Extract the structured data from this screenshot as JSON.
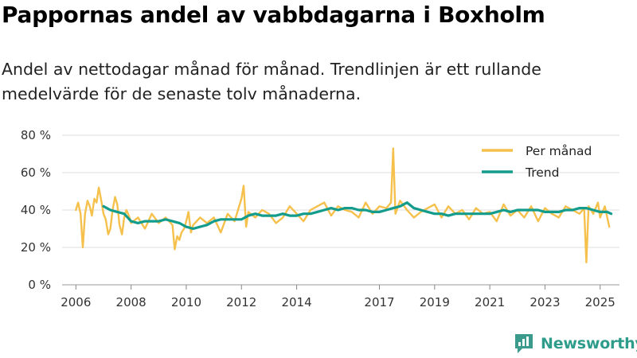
{
  "header": {
    "title": "Pappornas andel av vabbdagarna i Boxholm",
    "subtitle": "Andel av nettodagar månad för månad. Trendlinjen är ett rullande medelvärde för de senaste tolv månaderna."
  },
  "brand": {
    "name": "Newsworthy",
    "icon": "newsworthy-logo-icon",
    "color": "#3a9b8c"
  },
  "chart_data": {
    "type": "line",
    "title": "Pappornas andel av vabbdagarna i Boxholm",
    "xlabel": "",
    "ylabel": "",
    "ylim": [
      0,
      80
    ],
    "xlim": [
      2005.5,
      2025.7
    ],
    "y_ticks": [
      0,
      20,
      40,
      60,
      80
    ],
    "y_tick_labels": [
      "0 %",
      "20 %",
      "40 %",
      "60 %",
      "80 %"
    ],
    "x_ticks": [
      2006,
      2008,
      2010,
      2012,
      2014,
      2017,
      2019,
      2021,
      2023,
      2025
    ],
    "x_tick_labels": [
      "2006",
      "2008",
      "2010",
      "2012",
      "2014",
      "2017",
      "2019",
      "2021",
      "2023",
      "2025"
    ],
    "grid": true,
    "legend_position": "top-right",
    "series": [
      {
        "name": "Per månad",
        "color": "#f5c14c",
        "x": [
          2006.0,
          2006.08,
          2006.17,
          2006.25,
          2006.33,
          2006.42,
          2006.5,
          2006.58,
          2006.67,
          2006.75,
          2006.83,
          2006.92,
          2007.0,
          2007.08,
          2007.17,
          2007.25,
          2007.33,
          2007.42,
          2007.5,
          2007.58,
          2007.67,
          2007.75,
          2007.83,
          2007.92,
          2008.0,
          2008.25,
          2008.5,
          2008.75,
          2009.0,
          2009.25,
          2009.5,
          2009.58,
          2009.67,
          2009.75,
          2009.83,
          2009.92,
          2010.0,
          2010.08,
          2010.17,
          2010.25,
          2010.5,
          2010.75,
          2011.0,
          2011.25,
          2011.5,
          2011.75,
          2012.0,
          2012.08,
          2012.17,
          2012.25,
          2012.5,
          2012.75,
          2013.0,
          2013.25,
          2013.5,
          2013.75,
          2014.0,
          2014.25,
          2014.5,
          2014.75,
          2015.0,
          2015.25,
          2015.5,
          2015.75,
          2016.0,
          2016.25,
          2016.5,
          2016.75,
          2017.0,
          2017.25,
          2017.42,
          2017.5,
          2017.58,
          2017.75,
          2018.0,
          2018.25,
          2018.5,
          2018.75,
          2019.0,
          2019.25,
          2019.5,
          2019.75,
          2020.0,
          2020.25,
          2020.5,
          2020.75,
          2021.0,
          2021.25,
          2021.5,
          2021.75,
          2022.0,
          2022.25,
          2022.5,
          2022.75,
          2023.0,
          2023.25,
          2023.5,
          2023.75,
          2024.0,
          2024.25,
          2024.42,
          2024.5,
          2024.58,
          2024.67,
          2024.75,
          2024.92,
          2025.0,
          2025.17,
          2025.33
        ],
        "values": [
          40,
          44,
          38,
          20,
          38,
          45,
          42,
          37,
          46,
          44,
          52,
          45,
          38,
          35,
          27,
          30,
          40,
          47,
          43,
          32,
          27,
          36,
          40,
          37,
          33,
          36,
          30,
          38,
          33,
          36,
          32,
          19,
          26,
          24,
          28,
          30,
          34,
          39,
          28,
          32,
          36,
          33,
          36,
          28,
          38,
          34,
          46,
          53,
          31,
          39,
          36,
          40,
          38,
          33,
          36,
          42,
          38,
          34,
          40,
          42,
          44,
          37,
          42,
          40,
          39,
          36,
          44,
          38,
          42,
          41,
          44,
          73,
          38,
          45,
          40,
          36,
          39,
          41,
          43,
          36,
          42,
          38,
          40,
          35,
          41,
          38,
          39,
          34,
          43,
          37,
          40,
          36,
          42,
          34,
          41,
          38,
          36,
          42,
          40,
          38,
          41,
          12,
          42,
          40,
          38,
          44,
          36,
          42,
          31
        ]
      },
      {
        "name": "Trend",
        "color": "#139c8c",
        "x": [
          2007.0,
          2007.25,
          2007.5,
          2007.75,
          2008.0,
          2008.25,
          2008.5,
          2008.75,
          2009.0,
          2009.25,
          2009.5,
          2009.75,
          2010.0,
          2010.25,
          2010.5,
          2010.75,
          2011.0,
          2011.25,
          2011.5,
          2011.75,
          2012.0,
          2012.25,
          2012.5,
          2012.75,
          2013.0,
          2013.25,
          2013.5,
          2013.75,
          2014.0,
          2014.25,
          2014.5,
          2014.75,
          2015.0,
          2015.25,
          2015.5,
          2015.75,
          2016.0,
          2016.25,
          2016.5,
          2016.75,
          2017.0,
          2017.25,
          2017.5,
          2017.75,
          2018.0,
          2018.25,
          2018.5,
          2018.75,
          2019.0,
          2019.25,
          2019.5,
          2019.75,
          2020.0,
          2020.25,
          2020.5,
          2020.75,
          2021.0,
          2021.25,
          2021.5,
          2021.75,
          2022.0,
          2022.25,
          2022.5,
          2022.75,
          2023.0,
          2023.25,
          2023.5,
          2023.75,
          2024.0,
          2024.25,
          2024.5,
          2024.75,
          2025.0,
          2025.25,
          2025.4
        ],
        "values": [
          42,
          40,
          39,
          38,
          34,
          33,
          34,
          34,
          34,
          35,
          34,
          33,
          31,
          30,
          31,
          32,
          34,
          35,
          35,
          35,
          35,
          37,
          38,
          37,
          37,
          37,
          38,
          37,
          37,
          38,
          38,
          39,
          40,
          41,
          40,
          41,
          41,
          40,
          40,
          39,
          39,
          40,
          41,
          42,
          44,
          41,
          40,
          39,
          38,
          38,
          37,
          38,
          38,
          38,
          38,
          38,
          38,
          39,
          40,
          39,
          40,
          40,
          40,
          40,
          39,
          39,
          39,
          40,
          40,
          41,
          41,
          40,
          39,
          39,
          38
        ]
      }
    ]
  }
}
